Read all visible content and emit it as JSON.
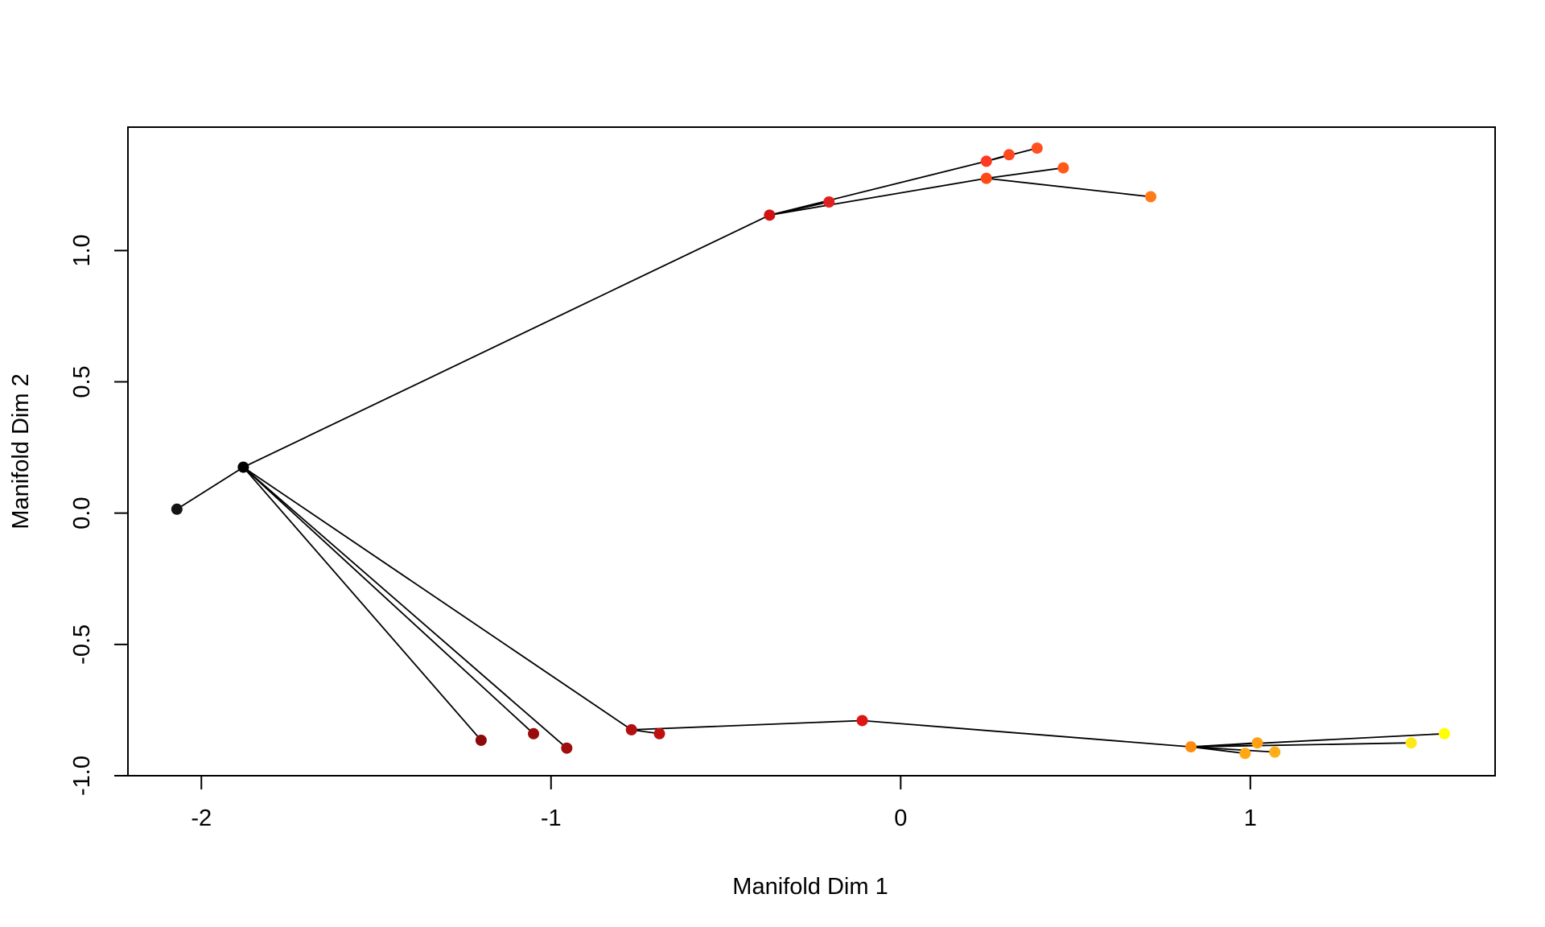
{
  "chart_data": {
    "type": "scatter",
    "title": "",
    "xlabel": "Manifold Dim 1",
    "ylabel": "Manifold Dim 2",
    "xlim": [
      -2.21,
      1.7
    ],
    "ylim": [
      -1.0,
      1.47
    ],
    "xticks": [
      -2,
      -1,
      0,
      1
    ],
    "xtick_labels": [
      "-2",
      "-1",
      "0",
      "1"
    ],
    "yticks": [
      -1.0,
      -0.5,
      0.0,
      0.5,
      1.0
    ],
    "ytick_labels": [
      "-1.0",
      "-0.5",
      "0.0",
      "0.5",
      "1.0"
    ],
    "grid": false,
    "legend": "none",
    "point_color_scale": [
      "#000000",
      "#8b0000",
      "#d40000",
      "#ff4000",
      "#ff8c00",
      "#ffd000",
      "#ffff00"
    ],
    "edge_color": "#000000",
    "points": [
      {
        "id": "p0",
        "x": -2.07,
        "y": 0.015,
        "color": "#141414"
      },
      {
        "id": "p1",
        "x": -1.88,
        "y": 0.175,
        "color": "#000000"
      },
      {
        "id": "p2",
        "x": -1.2,
        "y": -0.865,
        "color": "#8b0a0a"
      },
      {
        "id": "p3",
        "x": -1.05,
        "y": -0.84,
        "color": "#9a0c0c"
      },
      {
        "id": "p4",
        "x": -0.955,
        "y": -0.895,
        "color": "#a00d0d"
      },
      {
        "id": "p5",
        "x": -0.77,
        "y": -0.825,
        "color": "#b20f0f"
      },
      {
        "id": "p6",
        "x": -0.69,
        "y": -0.84,
        "color": "#bf1010"
      },
      {
        "id": "p7",
        "x": -0.11,
        "y": -0.79,
        "color": "#dd1515"
      },
      {
        "id": "p8",
        "x": 0.83,
        "y": -0.89,
        "color": "#ff8c10"
      },
      {
        "id": "p9",
        "x": 0.985,
        "y": -0.915,
        "color": "#ffa812"
      },
      {
        "id": "p10",
        "x": 1.02,
        "y": -0.875,
        "color": "#ffa014"
      },
      {
        "id": "p11",
        "x": 1.07,
        "y": -0.91,
        "color": "#ffae18"
      },
      {
        "id": "p12",
        "x": 1.46,
        "y": -0.875,
        "color": "#ffe818"
      },
      {
        "id": "p13",
        "x": 1.555,
        "y": -0.84,
        "color": "#ffff00"
      },
      {
        "id": "p14",
        "x": -0.375,
        "y": 1.135,
        "color": "#d01212"
      },
      {
        "id": "p15",
        "x": -0.205,
        "y": 1.185,
        "color": "#e02020"
      },
      {
        "id": "p16",
        "x": 0.245,
        "y": 1.34,
        "color": "#ff3a20"
      },
      {
        "id": "p17",
        "x": 0.245,
        "y": 1.275,
        "color": "#ff4a18"
      },
      {
        "id": "p18",
        "x": 0.31,
        "y": 1.365,
        "color": "#ff4a20"
      },
      {
        "id": "p19",
        "x": 0.39,
        "y": 1.39,
        "color": "#ff5020"
      },
      {
        "id": "p20",
        "x": 0.465,
        "y": 1.315,
        "color": "#ff5818"
      },
      {
        "id": "p21",
        "x": 0.715,
        "y": 1.205,
        "color": "#ff7a18"
      }
    ],
    "edges": [
      [
        "p0",
        "p1"
      ],
      [
        "p1",
        "p14"
      ],
      [
        "p1",
        "p2"
      ],
      [
        "p1",
        "p3"
      ],
      [
        "p1",
        "p4"
      ],
      [
        "p1",
        "p5"
      ],
      [
        "p5",
        "p6"
      ],
      [
        "p5",
        "p7"
      ],
      [
        "p7",
        "p8"
      ],
      [
        "p8",
        "p9"
      ],
      [
        "p8",
        "p10"
      ],
      [
        "p8",
        "p11"
      ],
      [
        "p8",
        "p12"
      ],
      [
        "p8",
        "p13"
      ],
      [
        "p14",
        "p15"
      ],
      [
        "p14",
        "p16"
      ],
      [
        "p14",
        "p17"
      ],
      [
        "p16",
        "p18"
      ],
      [
        "p16",
        "p19"
      ],
      [
        "p17",
        "p20"
      ],
      [
        "p17",
        "p21"
      ]
    ]
  }
}
